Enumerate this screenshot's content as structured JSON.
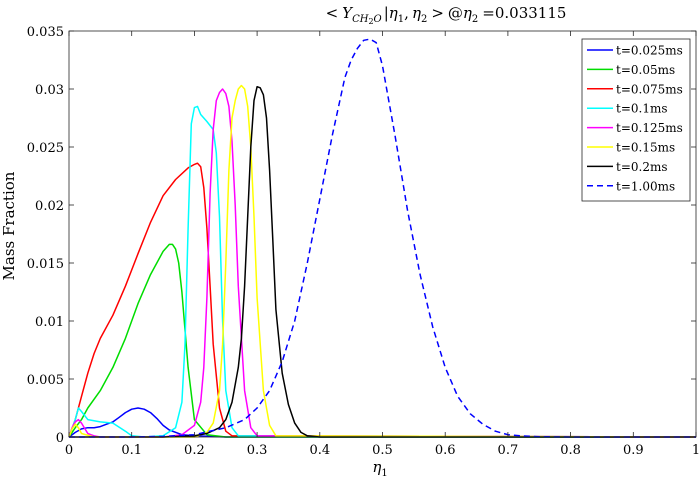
{
  "chart_data": {
    "type": "line",
    "title": "< Y_{CH2O} | η1, η2 > @η2 =0.033115",
    "title_parts": {
      "open": "<",
      "Y": "Y",
      "sub_ch": "CH",
      "sub_2": "2",
      "sub_o": "O",
      "bar": "|",
      "eta": "η",
      "one": "1",
      "comma": ",",
      "two": "2",
      "close": ">",
      "at": "@",
      "two_b": "2",
      "eq_value": "=0.033115"
    },
    "xlabel": "η",
    "xlabel_sub": "1",
    "ylabel": "Mass Fraction",
    "xlim": [
      0,
      1
    ],
    "ylim": [
      0,
      0.035
    ],
    "xticks": [
      0,
      0.1,
      0.2,
      0.3,
      0.4,
      0.5,
      0.6,
      0.7,
      0.8,
      0.9,
      1
    ],
    "xtick_labels": [
      "0",
      "0.1",
      "0.2",
      "0.3",
      "0.4",
      "0.5",
      "0.6",
      "0.7",
      "0.8",
      "0.9",
      "1"
    ],
    "yticks": [
      0,
      0.005,
      0.01,
      0.015,
      0.02,
      0.025,
      0.03,
      0.035
    ],
    "ytick_labels": [
      "0",
      "0.005",
      "0.01",
      "0.015",
      "0.02",
      "0.025",
      "0.03",
      "0.035"
    ],
    "grid": false,
    "legend_position": "top-right",
    "series": [
      {
        "name": "t=0.025ms",
        "color": "#0000ff",
        "dash": "solid",
        "x": [
          0,
          0.01,
          0.02,
          0.03,
          0.04,
          0.05,
          0.06,
          0.07,
          0.08,
          0.09,
          0.1,
          0.11,
          0.12,
          0.13,
          0.14,
          0.15,
          0.16,
          0.18,
          0.2,
          0.25,
          1
        ],
        "y": [
          0,
          0.0004,
          0.0007,
          0.0008,
          0.0008,
          0.0009,
          0.0011,
          0.0013,
          0.0017,
          0.0021,
          0.0024,
          0.0025,
          0.0024,
          0.0021,
          0.0016,
          0.001,
          0.0006,
          0.0002,
          0.0001,
          0,
          0
        ]
      },
      {
        "name": "t=0.05ms",
        "color": "#00dd00",
        "dash": "solid",
        "x": [
          0,
          0.01,
          0.02,
          0.03,
          0.05,
          0.07,
          0.09,
          0.11,
          0.13,
          0.15,
          0.16,
          0.165,
          0.17,
          0.175,
          0.18,
          0.19,
          0.2,
          0.22,
          0.25,
          1
        ],
        "y": [
          0,
          0.0008,
          0.0015,
          0.0025,
          0.004,
          0.006,
          0.0085,
          0.0115,
          0.014,
          0.016,
          0.0166,
          0.0166,
          0.0162,
          0.015,
          0.0125,
          0.006,
          0.0015,
          0.0002,
          0,
          0
        ]
      },
      {
        "name": "t=0.075ms",
        "color": "#ff0000",
        "dash": "solid",
        "x": [
          0,
          0.01,
          0.02,
          0.03,
          0.04,
          0.05,
          0.07,
          0.09,
          0.11,
          0.13,
          0.15,
          0.17,
          0.19,
          0.2,
          0.205,
          0.21,
          0.215,
          0.22,
          0.225,
          0.23,
          0.24,
          0.25,
          0.26,
          1
        ],
        "y": [
          0,
          0.0015,
          0.0035,
          0.0055,
          0.0072,
          0.0085,
          0.0105,
          0.013,
          0.0158,
          0.0185,
          0.0208,
          0.0222,
          0.0232,
          0.0235,
          0.0236,
          0.0233,
          0.0215,
          0.018,
          0.013,
          0.008,
          0.0025,
          0.0005,
          0.0001,
          0
        ]
      },
      {
        "name": "t=0.1ms",
        "color": "#00ffff",
        "dash": "solid",
        "x": [
          0,
          0.01,
          0.015,
          0.02,
          0.03,
          0.05,
          0.07,
          0.09,
          0.1,
          0.12,
          0.15,
          0.17,
          0.18,
          0.185,
          0.19,
          0.195,
          0.2,
          0.205,
          0.21,
          0.22,
          0.23,
          0.235,
          0.24,
          0.245,
          0.25,
          0.26,
          0.27,
          1
        ],
        "y": [
          0,
          0.0015,
          0.0025,
          0.0022,
          0.0015,
          0.0013,
          0.0012,
          0.0005,
          0.0001,
          0,
          0.0001,
          0.0008,
          0.003,
          0.008,
          0.018,
          0.027,
          0.0284,
          0.0285,
          0.0278,
          0.0272,
          0.0265,
          0.0245,
          0.019,
          0.01,
          0.004,
          0.0008,
          0.0001,
          0
        ]
      },
      {
        "name": "t=0.125ms",
        "color": "#ff00ff",
        "dash": "solid",
        "x": [
          0,
          0.005,
          0.01,
          0.015,
          0.02,
          0.03,
          0.035,
          0.04,
          0.05,
          0.1,
          0.15,
          0.18,
          0.2,
          0.21,
          0.215,
          0.22,
          0.225,
          0.23,
          0.235,
          0.24,
          0.245,
          0.25,
          0.255,
          0.26,
          0.265,
          0.27,
          0.28,
          0.29,
          0.3,
          1
        ],
        "y": [
          0,
          0.0008,
          0.0013,
          0.0015,
          0.0012,
          0.0003,
          0.0002,
          0.0001,
          0,
          0,
          0,
          0.0002,
          0.001,
          0.003,
          0.006,
          0.012,
          0.021,
          0.0265,
          0.029,
          0.0297,
          0.03,
          0.0296,
          0.0285,
          0.0255,
          0.02,
          0.013,
          0.004,
          0.0008,
          0.0001,
          0
        ]
      },
      {
        "name": "t=0.15ms",
        "color": "#ffff00",
        "dash": "solid",
        "x": [
          0,
          0.005,
          0.01,
          0.015,
          0.02,
          0.04,
          0.2,
          0.22,
          0.23,
          0.24,
          0.245,
          0.25,
          0.255,
          0.26,
          0.265,
          0.27,
          0.275,
          0.28,
          0.285,
          0.29,
          0.295,
          0.3,
          0.31,
          0.32,
          0.33,
          1
        ],
        "y": [
          0,
          0.0007,
          0.0011,
          0.0008,
          0.0003,
          0,
          0,
          0.0004,
          0.0012,
          0.004,
          0.008,
          0.015,
          0.023,
          0.0275,
          0.029,
          0.03,
          0.0303,
          0.03,
          0.0285,
          0.025,
          0.019,
          0.012,
          0.004,
          0.001,
          0.0001,
          0
        ]
      },
      {
        "name": "t=0.2ms",
        "color": "#000000",
        "dash": "solid",
        "x": [
          0,
          0.05,
          0.1,
          0.15,
          0.2,
          0.22,
          0.24,
          0.25,
          0.26,
          0.27,
          0.275,
          0.28,
          0.285,
          0.29,
          0.295,
          0.3,
          0.305,
          0.31,
          0.315,
          0.32,
          0.325,
          0.33,
          0.34,
          0.35,
          0.36,
          0.37,
          0.38,
          0.39,
          0.4,
          1
        ],
        "y": [
          0,
          0,
          0,
          0,
          0.0001,
          0.0003,
          0.0008,
          0.0015,
          0.003,
          0.006,
          0.0085,
          0.013,
          0.019,
          0.025,
          0.029,
          0.0302,
          0.0301,
          0.0295,
          0.0275,
          0.023,
          0.017,
          0.011,
          0.0055,
          0.0028,
          0.0012,
          0.0004,
          0.0001,
          5e-05,
          0,
          0
        ]
      },
      {
        "name": "t=1.00ms",
        "color": "#0000ff",
        "dash": "dashed",
        "x": [
          0,
          0.1,
          0.15,
          0.2,
          0.25,
          0.28,
          0.3,
          0.32,
          0.34,
          0.36,
          0.38,
          0.4,
          0.42,
          0.44,
          0.45,
          0.46,
          0.47,
          0.48,
          0.49,
          0.5,
          0.52,
          0.54,
          0.56,
          0.58,
          0.6,
          0.62,
          0.64,
          0.66,
          0.68,
          0.7,
          0.72,
          0.75,
          0.8,
          1
        ],
        "y": [
          0,
          0,
          5e-05,
          0.0002,
          0.0008,
          0.0015,
          0.0025,
          0.004,
          0.0065,
          0.01,
          0.015,
          0.0205,
          0.026,
          0.031,
          0.0325,
          0.0335,
          0.0342,
          0.0343,
          0.034,
          0.032,
          0.026,
          0.0195,
          0.014,
          0.0095,
          0.006,
          0.0035,
          0.002,
          0.0011,
          0.0005,
          0.0002,
          0.0001,
          3e-05,
          0,
          0
        ]
      }
    ]
  }
}
